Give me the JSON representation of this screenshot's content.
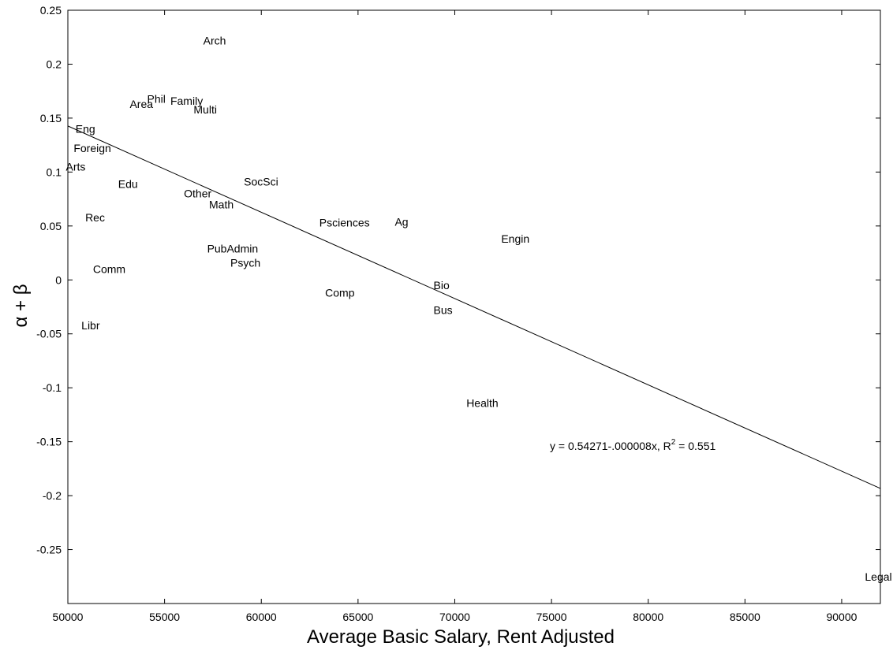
{
  "chart_data": {
    "type": "scatter",
    "title": "",
    "xlabel": "Average Basic Salary, Rent Adjusted",
    "ylabel": "α + β",
    "xlim": [
      50000,
      92000
    ],
    "ylim": [
      -0.3,
      0.25
    ],
    "x_ticks": [
      "50000",
      "55000",
      "60000",
      "65000",
      "70000",
      "75000",
      "80000",
      "85000",
      "90000"
    ],
    "y_ticks": [
      "0.25",
      "0.2",
      "0.15",
      "0.1",
      "0.05",
      "0",
      "-0.05",
      "-0.1",
      "-0.15",
      "-0.2",
      "-0.25"
    ],
    "grid": false,
    "markers": "text labels",
    "points": [
      {
        "label": "Arch",
        "x": 57000,
        "y": 0.222
      },
      {
        "label": "Phil",
        "x": 54100,
        "y": 0.168
      },
      {
        "label": "Area",
        "x": 53200,
        "y": 0.163
      },
      {
        "label": "Family",
        "x": 55300,
        "y": 0.166
      },
      {
        "label": "Multi",
        "x": 56500,
        "y": 0.158
      },
      {
        "label": "Eng",
        "x": 50400,
        "y": 0.14
      },
      {
        "label": "Foreign",
        "x": 50300,
        "y": 0.122
      },
      {
        "label": "Arts",
        "x": 49900,
        "y": 0.105
      },
      {
        "label": "Edu",
        "x": 52600,
        "y": 0.089
      },
      {
        "label": "Other",
        "x": 56000,
        "y": 0.08
      },
      {
        "label": "SocSci",
        "x": 59100,
        "y": 0.091
      },
      {
        "label": "Math",
        "x": 57300,
        "y": 0.07
      },
      {
        "label": "Rec",
        "x": 50900,
        "y": 0.058
      },
      {
        "label": "Psciences",
        "x": 63000,
        "y": 0.053
      },
      {
        "label": "Ag",
        "x": 66900,
        "y": 0.054
      },
      {
        "label": "Engin",
        "x": 72400,
        "y": 0.038
      },
      {
        "label": "PubAdmin",
        "x": 57200,
        "y": 0.029
      },
      {
        "label": "Psych",
        "x": 58400,
        "y": 0.016
      },
      {
        "label": "Comm",
        "x": 51300,
        "y": 0.01
      },
      {
        "label": "Bio",
        "x": 68900,
        "y": -0.005
      },
      {
        "label": "Comp",
        "x": 63300,
        "y": -0.012
      },
      {
        "label": "Bus",
        "x": 68900,
        "y": -0.028
      },
      {
        "label": "Libr",
        "x": 50700,
        "y": -0.042
      },
      {
        "label": "Health",
        "x": 70600,
        "y": -0.114
      },
      {
        "label": "Legal",
        "x": 91200,
        "y": -0.275
      }
    ],
    "fit_line": {
      "intercept": 0.54271,
      "slope": -8e-06
    },
    "annotations": {
      "equation_prefix": "y = 0.54271-.000008x, R",
      "equation_sup": "2",
      "equation_suffix": " = 0.551"
    }
  }
}
